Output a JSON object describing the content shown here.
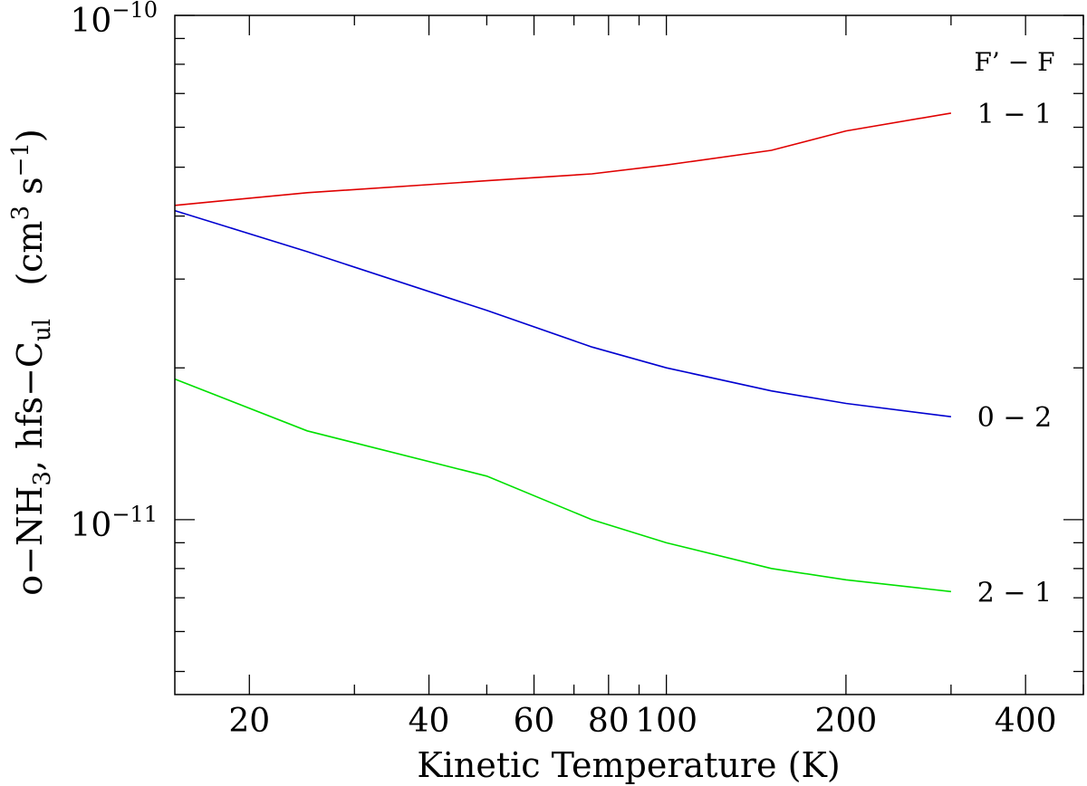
{
  "chart_data": {
    "type": "line",
    "xscale": "log",
    "yscale": "log",
    "xlim": [
      15,
      500
    ],
    "ylim": [
      4.5e-12,
      1e-10
    ],
    "xlabel": "Kinetic Temperature (K)",
    "ylabel": {
      "prefix": "o−NH",
      "sub1": "3",
      "middle": ",  hfs−C",
      "sub2": "ul",
      "units_open": "   (cm",
      "sup1": "3",
      "units_mid": " s",
      "sup2": "−1",
      "units_close": ")"
    },
    "x_tick_labels": [
      {
        "value": 20,
        "label": "20"
      },
      {
        "value": 40,
        "label": "40"
      },
      {
        "value": 60,
        "label": "60"
      },
      {
        "value": 80,
        "label": "80"
      },
      {
        "value": 100,
        "label": "100"
      },
      {
        "value": 200,
        "label": "200"
      },
      {
        "value": 400,
        "label": "400"
      }
    ],
    "y_tick_labels": [
      {
        "value": 1e-10,
        "base": "10",
        "exp": "−10"
      },
      {
        "value": 1e-11,
        "base": "10",
        "exp": "−11"
      }
    ],
    "legend_title": "F’ − F",
    "grid": false,
    "series": [
      {
        "name": "1 − 1",
        "color": "#e00000",
        "x": [
          15,
          25,
          50,
          75,
          100,
          150,
          200,
          300
        ],
        "y": [
          4.2e-11,
          4.45e-11,
          4.7e-11,
          4.85e-11,
          5.05e-11,
          5.4e-11,
          5.9e-11,
          6.4e-11
        ]
      },
      {
        "name": "0 − 2",
        "color": "#0000d0",
        "x": [
          15,
          25,
          50,
          75,
          100,
          150,
          200,
          300
        ],
        "y": [
          4.1e-11,
          3.4e-11,
          2.6e-11,
          2.2e-11,
          2e-11,
          1.8e-11,
          1.7e-11,
          1.6e-11
        ]
      },
      {
        "name": "2 − 1",
        "color": "#00e000",
        "x": [
          15,
          25,
          50,
          75,
          100,
          150,
          200,
          300
        ],
        "y": [
          1.9e-11,
          1.5e-11,
          1.22e-11,
          1e-11,
          9e-12,
          8e-12,
          7.6e-12,
          7.2e-12
        ]
      }
    ]
  }
}
